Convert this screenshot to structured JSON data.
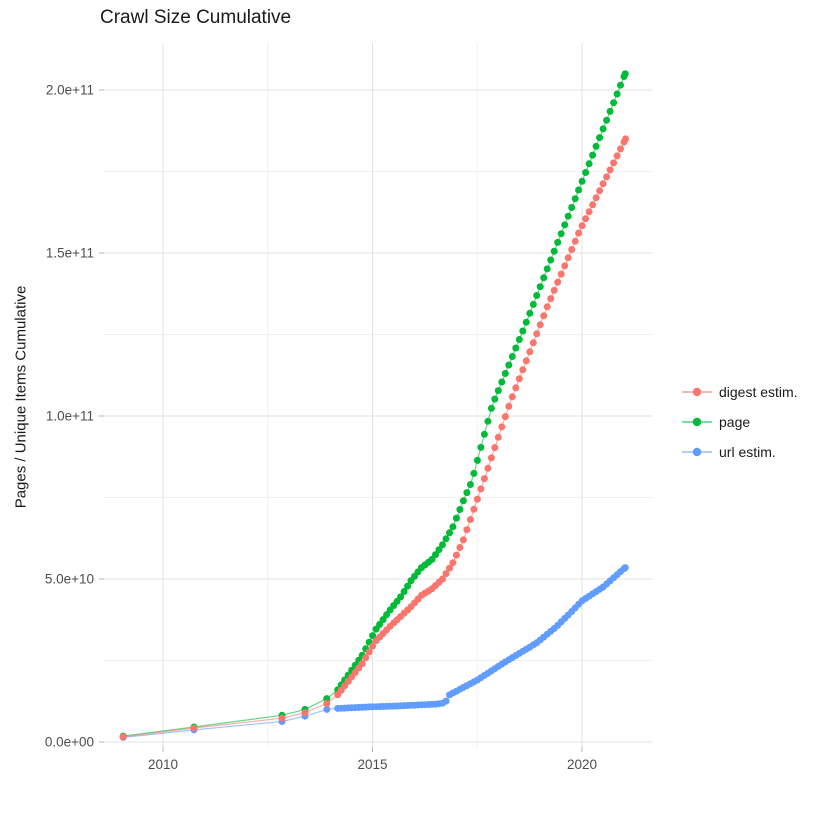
{
  "title": "Crawl Size Cumulative",
  "legend": {
    "items": [
      {
        "label": "digest estim.",
        "color": "#F8766D"
      },
      {
        "label": "page",
        "color": "#00BA38"
      },
      {
        "label": "url estim.",
        "color": "#619CFF"
      }
    ]
  },
  "chart_data": {
    "type": "scatter",
    "title": "Crawl Size Cumulative",
    "xlabel": "",
    "ylabel": "Pages / Unique Items Cumulative",
    "x_range": [
      2008.6,
      2021.7
    ],
    "y_range": [
      0,
      214000000000.0
    ],
    "x_ticks": [
      2010,
      2015,
      2020
    ],
    "x_tick_labels": [
      "2010",
      "2015",
      "2020"
    ],
    "x_minor_ticks": [
      2012.5,
      2017.5
    ],
    "y_ticks_e9": [
      0,
      50,
      100,
      150,
      200
    ],
    "y_tick_labels": [
      "0.0e+00",
      "5.0e+10",
      "1.0e+11",
      "1.5e+11",
      "2.0e+11"
    ],
    "y_minor_ticks_e9": [
      25,
      75,
      125,
      175
    ],
    "grid": true,
    "legend_position": "right",
    "units": "y values in billions (1e9) of pages / unique items",
    "sampling_note": "crawl points are sparse 2009-2013, then roughly monthly 2014-2021; monthly dots are interpolated between the anchor readings below",
    "draw_order": [
      2,
      1,
      0
    ],
    "series": [
      {
        "name": "digest estim.",
        "color": "#F8766D",
        "sparse_points_e9": [
          [
            2009.05,
            1.6
          ],
          [
            2010.74,
            4.3
          ],
          [
            2012.84,
            7.3
          ],
          [
            2013.39,
            9.0
          ],
          [
            2013.91,
            11.8
          ]
        ],
        "anchor_points_e9": [
          [
            2014.17,
            14.5
          ],
          [
            2014.75,
            24
          ],
          [
            2015.08,
            31
          ],
          [
            2015.42,
            35.5
          ],
          [
            2015.67,
            38.5
          ],
          [
            2015.92,
            41.5
          ],
          [
            2016.17,
            45
          ],
          [
            2016.42,
            47
          ],
          [
            2016.67,
            50
          ],
          [
            2016.92,
            55
          ],
          [
            2017.17,
            62
          ],
          [
            2017.57,
            77
          ],
          [
            2018.28,
            104
          ],
          [
            2019.17,
            133.5
          ],
          [
            2019.95,
            157
          ],
          [
            2021.04,
            185
          ]
        ]
      },
      {
        "name": "page",
        "color": "#00BA38",
        "sparse_points_e9": [
          [
            2009.05,
            1.8
          ],
          [
            2010.74,
            4.6
          ],
          [
            2012.84,
            8.2
          ],
          [
            2013.39,
            10.0
          ],
          [
            2013.91,
            13.3
          ]
        ],
        "anchor_points_e9": [
          [
            2014.17,
            16
          ],
          [
            2014.75,
            26.5
          ],
          [
            2015.08,
            34.5
          ],
          [
            2015.42,
            40.5
          ],
          [
            2015.67,
            44.5
          ],
          [
            2015.92,
            49.5
          ],
          [
            2016.17,
            53.5
          ],
          [
            2016.42,
            56
          ],
          [
            2016.67,
            60.5
          ],
          [
            2016.92,
            66
          ],
          [
            2017.17,
            74
          ],
          [
            2017.37,
            80
          ],
          [
            2017.85,
            103
          ],
          [
            2018.6,
            126.5
          ],
          [
            2019.35,
            151
          ],
          [
            2021.03,
            205
          ]
        ]
      },
      {
        "name": "url estim.",
        "color": "#619CFF",
        "sparse_points_e9": [
          [
            2009.05,
            1.4
          ],
          [
            2010.74,
            3.7
          ],
          [
            2012.84,
            6.3
          ],
          [
            2013.39,
            7.9
          ],
          [
            2013.91,
            10.0
          ]
        ],
        "anchor_points_e9": [
          [
            2014.17,
            10.3
          ],
          [
            2015.0,
            10.8
          ],
          [
            2015.5,
            11.0
          ],
          [
            2016.0,
            11.3
          ],
          [
            2016.5,
            11.6
          ],
          [
            2016.73,
            12.0
          ],
          [
            2016.83,
            14.4
          ],
          [
            2017.5,
            19.0
          ],
          [
            2018.16,
            24.5
          ],
          [
            2018.93,
            30.5
          ],
          [
            2019.4,
            35.5
          ],
          [
            2019.75,
            40.0
          ],
          [
            2020.0,
            43.3
          ],
          [
            2020.5,
            47.5
          ],
          [
            2021.03,
            53.5
          ]
        ]
      }
    ]
  }
}
